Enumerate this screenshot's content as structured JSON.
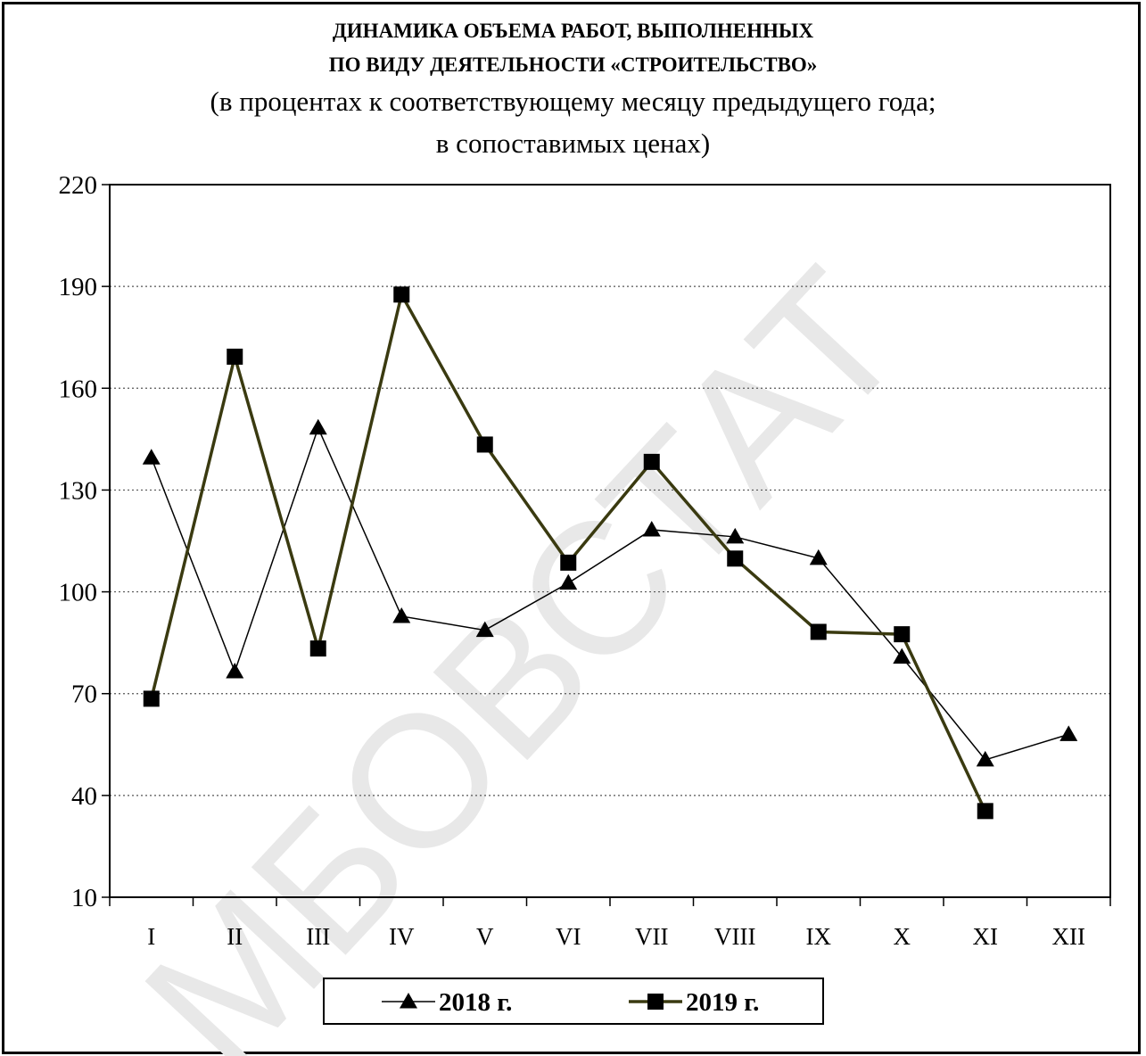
{
  "chart_data": {
    "type": "line",
    "title_lines": [
      "ДИНАМИКА ОБЪЕМА РАБОТ, ВЫПОЛНЕННЫХ",
      "ПО ВИДУ ДЕЯТЕЛЬНОСТИ «СТРОИТЕЛЬСТВО»"
    ],
    "subtitle_lines": [
      "(в процентах к соответствующему месяцу предыдущего года;",
      "в сопоставимых ценах)"
    ],
    "categories": [
      "I",
      "II",
      "III",
      "IV",
      "V",
      "VI",
      "VII",
      "VIII",
      "IX",
      "X",
      "XI",
      "XII"
    ],
    "yticks": [
      "10",
      "40",
      "70",
      "100",
      "130",
      "160",
      "190",
      "220"
    ],
    "ylim": [
      10,
      220
    ],
    "grid": "horizontal dotted",
    "legend_position": "bottom",
    "watermark": "МБОВСТАТ",
    "series": [
      {
        "name": "2018 г.",
        "marker": "triangle",
        "color": "#000000",
        "values": [
          139.5,
          76.5,
          148.3,
          92.8,
          88.7,
          102.6,
          118.3,
          116.2,
          109.9,
          80.8,
          50.5,
          58.0
        ]
      },
      {
        "name": "2019 г.",
        "marker": "square",
        "color": "#3a3a10",
        "values": [
          68.5,
          169.3,
          83.3,
          187.6,
          143.4,
          108.6,
          138.3,
          109.8,
          88.2,
          87.5,
          35.4,
          null
        ]
      }
    ]
  }
}
